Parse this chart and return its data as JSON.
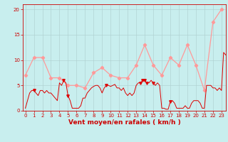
{
  "background_color": "#c8eeee",
  "grid_color": "#b0d0d0",
  "xlabel": "Vent moyen/en rafales ( km/h )",
  "ylim": [
    0,
    21
  ],
  "xlim": [
    -0.3,
    23.5
  ],
  "yticks": [
    0,
    5,
    10,
    15,
    20
  ],
  "xticks": [
    0,
    1,
    2,
    3,
    4,
    5,
    6,
    7,
    8,
    9,
    10,
    11,
    12,
    13,
    14,
    15,
    16,
    17,
    18,
    19,
    20,
    21,
    22,
    23
  ],
  "gust_x": [
    0,
    1,
    2,
    3,
    4,
    5,
    6,
    7,
    8,
    9,
    10,
    11,
    12,
    13,
    14,
    15,
    16,
    17,
    18,
    19,
    20,
    21,
    22,
    23
  ],
  "gust_y": [
    7.0,
    10.5,
    10.5,
    6.5,
    6.5,
    5.0,
    5.0,
    4.5,
    7.5,
    8.5,
    7.0,
    6.5,
    6.5,
    9.0,
    13.0,
    9.0,
    7.0,
    10.5,
    9.0,
    13.0,
    9.0,
    4.0,
    17.5,
    20.0
  ],
  "mean_x": [
    0.0,
    0.25,
    0.5,
    0.75,
    1.0,
    1.25,
    1.5,
    1.75,
    2.0,
    2.25,
    2.5,
    2.75,
    3.0,
    3.25,
    3.5,
    3.75,
    4.0,
    4.25,
    4.5,
    4.75,
    5.0,
    5.25,
    5.5,
    5.75,
    6.0,
    6.25,
    6.5,
    6.75,
    7.0,
    7.25,
    7.5,
    7.75,
    8.0,
    8.25,
    8.5,
    8.75,
    9.0,
    9.25,
    9.5,
    9.75,
    10.0,
    10.25,
    10.5,
    10.75,
    11.0,
    11.25,
    11.5,
    11.75,
    12.0,
    12.25,
    12.5,
    12.75,
    13.0,
    13.25,
    13.5,
    13.75,
    14.0,
    14.25,
    14.5,
    14.75,
    15.0,
    15.25,
    15.5,
    15.75,
    16.0,
    16.25,
    16.5,
    16.75,
    17.0,
    17.25,
    17.5,
    17.75,
    18.0,
    18.25,
    18.5,
    18.75,
    19.0,
    19.25,
    19.5,
    19.75,
    20.0,
    20.25,
    20.5,
    20.75,
    21.0,
    21.25,
    21.5,
    21.75,
    22.0,
    22.25,
    22.5,
    22.75,
    23.0,
    23.25,
    23.5
  ],
  "mean_y": [
    0.5,
    2.0,
    3.5,
    4.0,
    4.0,
    3.5,
    3.0,
    4.0,
    4.0,
    3.5,
    4.0,
    3.5,
    3.5,
    3.0,
    2.5,
    2.0,
    5.5,
    5.0,
    6.0,
    5.5,
    3.0,
    2.0,
    0.5,
    0.5,
    0.5,
    0.5,
    1.0,
    2.5,
    2.5,
    3.5,
    4.0,
    4.5,
    4.8,
    5.0,
    5.0,
    4.5,
    3.5,
    4.5,
    5.0,
    5.0,
    4.8,
    5.0,
    5.2,
    4.5,
    4.5,
    4.0,
    4.5,
    3.5,
    3.0,
    3.5,
    3.0,
    3.5,
    5.0,
    5.5,
    5.5,
    6.0,
    6.0,
    5.5,
    5.5,
    6.0,
    5.5,
    5.0,
    5.5,
    5.0,
    0.5,
    0.5,
    0.3,
    0.3,
    1.8,
    2.0,
    1.5,
    0.5,
    0.5,
    0.5,
    0.5,
    1.0,
    0.5,
    0.5,
    1.5,
    2.0,
    2.0,
    2.0,
    1.5,
    0.5,
    0.5,
    5.0,
    5.0,
    5.0,
    4.5,
    4.5,
    4.0,
    4.5,
    4.0,
    11.5,
    11.0
  ],
  "mean_markers_x": [
    1.0,
    4.5,
    5.0,
    9.5,
    13.5,
    13.75,
    14.0,
    14.25,
    15.0,
    17.0
  ],
  "mean_markers_y": [
    4.0,
    6.0,
    3.0,
    5.0,
    5.5,
    6.0,
    6.0,
    5.5,
    5.5,
    1.8
  ],
  "gust_color": "#ff9999",
  "mean_color": "#dd0000",
  "marker_gust_color": "#ff9999",
  "marker_mean_color": "#dd0000",
  "tick_color": "#cc0000",
  "label_color": "#cc0000",
  "tick_fontsize": 5,
  "label_fontsize": 6.5
}
